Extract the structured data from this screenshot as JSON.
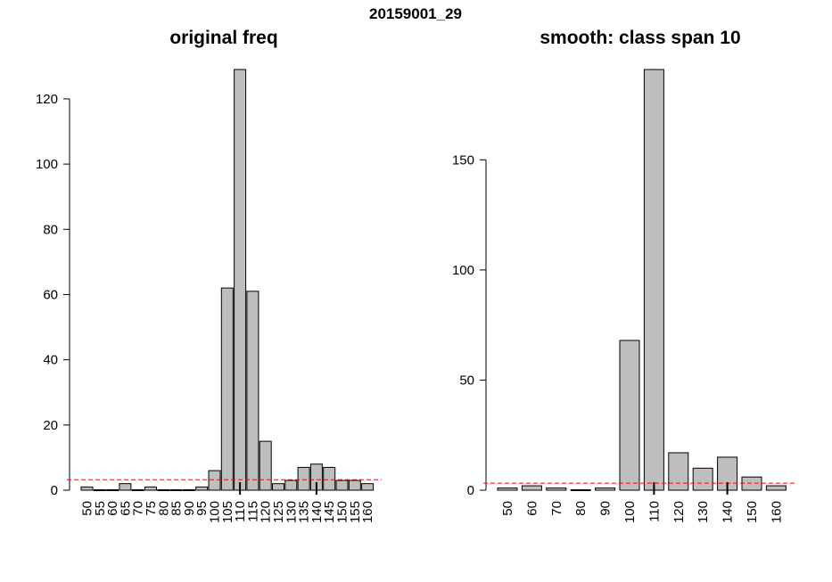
{
  "figure_title": "20159001_29",
  "chart_data": [
    {
      "type": "bar",
      "title": "original freq",
      "xlabel": "",
      "ylabel": "",
      "categories": [
        "50",
        "55",
        "60",
        "65",
        "70",
        "75",
        "80",
        "85",
        "90",
        "95",
        "100",
        "105",
        "110",
        "115",
        "120",
        "125",
        "130",
        "135",
        "140",
        "145",
        "150",
        "155",
        "160"
      ],
      "values": [
        1,
        0,
        0,
        2,
        0,
        1,
        0,
        0,
        0,
        1,
        6,
        62,
        129,
        61,
        15,
        2,
        3,
        7,
        8,
        7,
        3,
        3,
        2
      ],
      "yticks": [
        0,
        20,
        40,
        60,
        80,
        100,
        120
      ],
      "ylim": [
        0,
        129
      ],
      "reference_line": {
        "value": 3.2,
        "style": "dashed",
        "color": "#ff0000"
      },
      "marker_at": [
        "110",
        "140"
      ],
      "bar_fill": "#bebebe",
      "grid": false
    },
    {
      "type": "bar",
      "title": "smooth: class span 10",
      "xlabel": "",
      "ylabel": "",
      "categories": [
        "50",
        "60",
        "70",
        "80",
        "90",
        "100",
        "110",
        "120",
        "130",
        "140",
        "150",
        "160"
      ],
      "values": [
        1,
        2,
        1,
        0,
        1,
        68,
        191,
        17,
        10,
        15,
        6,
        2
      ],
      "yticks": [
        0,
        50,
        100,
        150
      ],
      "ylim": [
        0,
        191
      ],
      "reference_line": {
        "value": 3.2,
        "style": "dashed",
        "color": "#ff0000"
      },
      "marker_at": [
        "110",
        "140"
      ],
      "bar_fill": "#bebebe",
      "grid": false
    }
  ]
}
